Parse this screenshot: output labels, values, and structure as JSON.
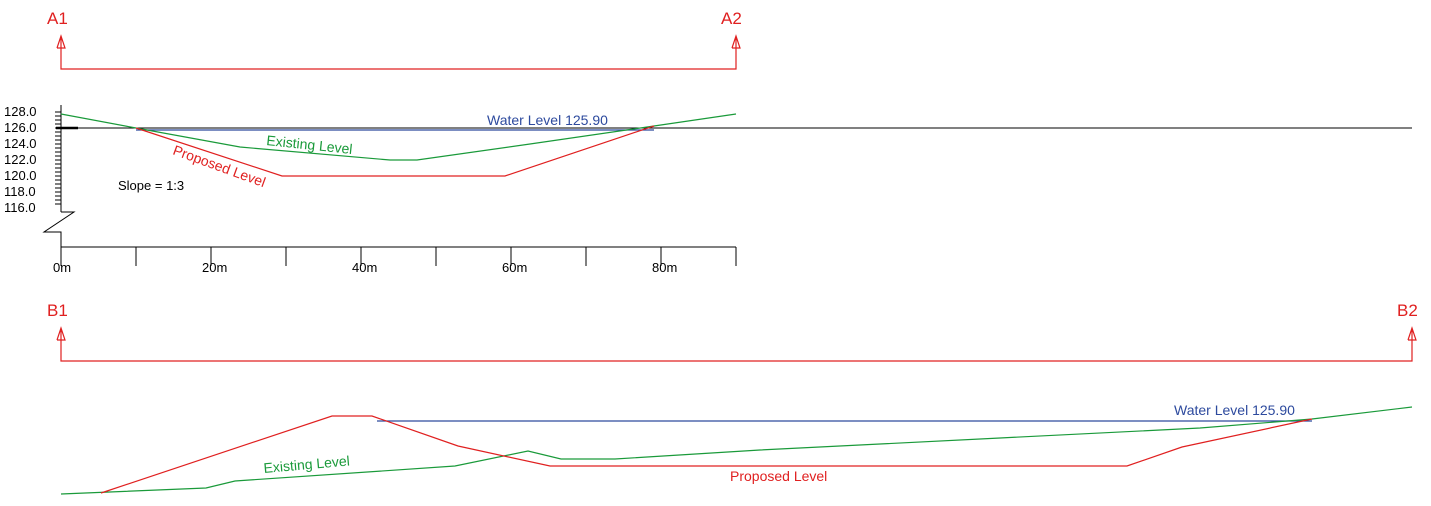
{
  "section_a": {
    "start_label": "A1",
    "end_label": "A2",
    "water_label": "Water Level 125.90",
    "existing_label": "Existing Level",
    "proposed_label": "Proposed Level",
    "slope_label": "Slope = 1:3",
    "y_ticks": [
      "128.0",
      "126.0",
      "124.0",
      "122.0",
      "120.0",
      "118.0",
      "116.0"
    ],
    "x_ticks": [
      "0m",
      "20m",
      "40m",
      "60m",
      "80m"
    ]
  },
  "section_b": {
    "start_label": "B1",
    "end_label": "B2",
    "water_label": "Water Level 125.90",
    "existing_label": "Existing Level",
    "proposed_label": "Proposed Level"
  },
  "colors": {
    "section_marker": "#e02020",
    "existing": "#1a9a3a",
    "proposed": "#e02020",
    "water": "#2d4a9e",
    "axis": "#000000"
  }
}
